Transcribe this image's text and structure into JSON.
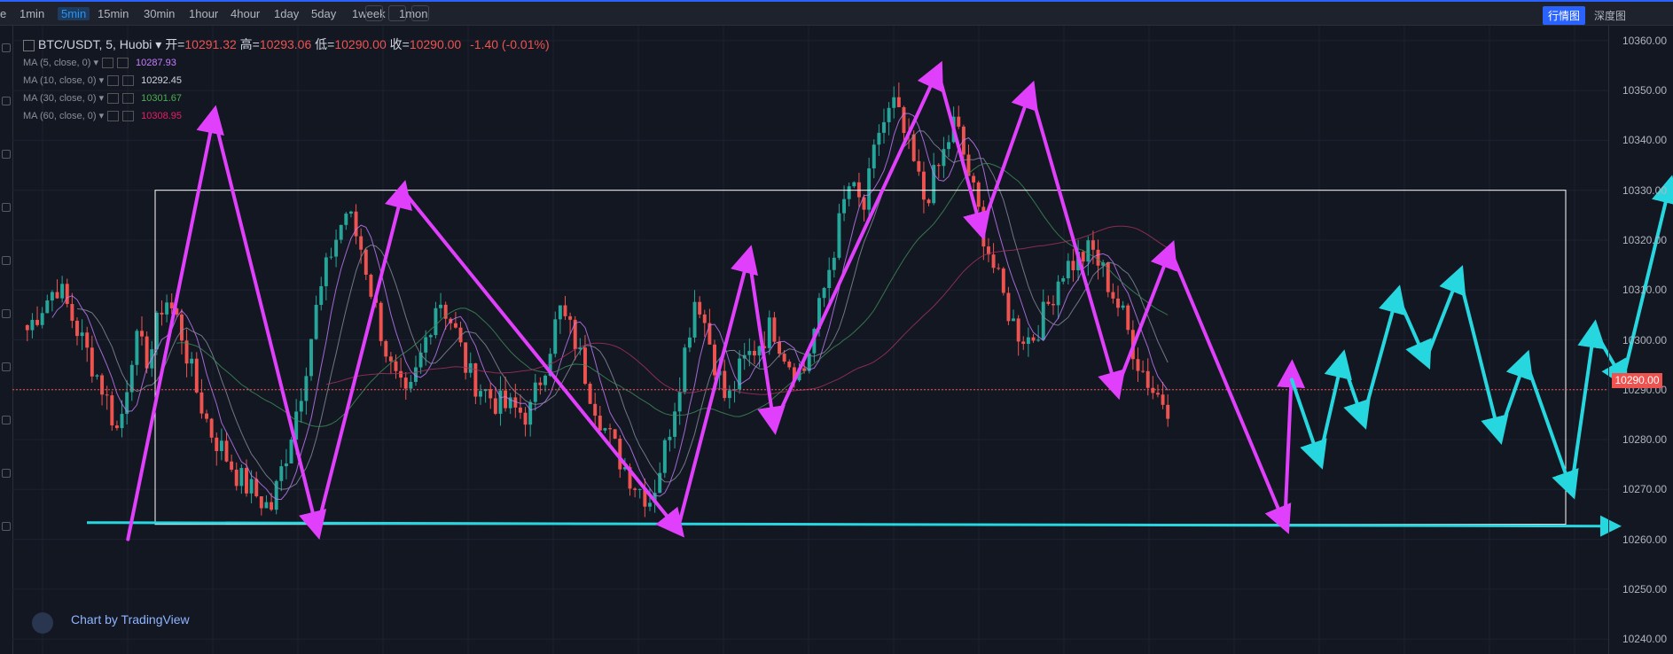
{
  "toolbar": {
    "cut_left": "e",
    "timeframes": [
      "1min",
      "5min",
      "15min",
      "30min",
      "1hour",
      "4hour",
      "1day",
      "5day",
      "1week",
      "1mon"
    ],
    "active_timeframe": "5min",
    "right_tabs": [
      "行情图",
      "深度图"
    ],
    "active_tab": "行情图"
  },
  "legend": {
    "symbol": "BTC/USDT, 5, Huobi",
    "open_label": "开=",
    "open": "10291.32",
    "high_label": "高=",
    "high": "10293.06",
    "low_label": "低=",
    "low": "10290.00",
    "close_label": "收=",
    "close": "10290.00",
    "change": "-1.40 (-0.01%)",
    "ma": [
      {
        "label": "MA (5, close, 0)",
        "value": "10287.93",
        "color": "#c77dff"
      },
      {
        "label": "MA (10, close, 0)",
        "value": "10292.45",
        "color": "#d1d4dc"
      },
      {
        "label": "MA (30, close, 0)",
        "value": "10301.67",
        "color": "#4caf50"
      },
      {
        "label": "MA (60, close, 0)",
        "value": "10308.95",
        "color": "#e91e63"
      }
    ]
  },
  "price_axis": {
    "ticks": [
      "10360.00",
      "10350.00",
      "10340.00",
      "10330.00",
      "10320.00",
      "10310.00",
      "10300.00",
      "10290.00",
      "10280.00",
      "10270.00",
      "10260.00",
      "10250.00",
      "10240.00"
    ],
    "last_price": "10290.00"
  },
  "watermark": "Chart by TradingView",
  "colors": {
    "up": "#26a69a",
    "down": "#ef5350",
    "magenta": "#e040fb",
    "cyan": "#26d7e0",
    "box": "#ffffff"
  },
  "chart_data": {
    "type": "candlestick",
    "symbol": "BTC/USDT",
    "timeframe": "5min",
    "y_range": [
      10237,
      10363
    ],
    "close_path": [
      10302,
      10307,
      10311,
      10304,
      10297,
      10290,
      10281,
      10300,
      10296,
      10309,
      10303,
      10291,
      10282,
      10277,
      10272,
      10269,
      10266,
      10277,
      10290,
      10306,
      10318,
      10326,
      10318,
      10305,
      10293,
      10287,
      10298,
      10309,
      10303,
      10293,
      10290,
      10287,
      10286,
      10285,
      10295,
      10306,
      10300,
      10290,
      10282,
      10276,
      10271,
      10268,
      10279,
      10294,
      10310,
      10298,
      10287,
      10295,
      10299,
      10303,
      10296,
      10293,
      10305,
      10318,
      10331,
      10326,
      10342,
      10347,
      10338,
      10328,
      10335,
      10344,
      10332,
      10320,
      10310,
      10302,
      10300,
      10306,
      10314,
      10316,
      10318,
      10312,
      10305,
      10296,
      10290,
      10287
    ],
    "magenta_path": [
      [
        0.09,
        10260
      ],
      [
        0.165,
        10345
      ],
      [
        0.255,
        10262
      ],
      [
        0.33,
        10330
      ],
      [
        0.57,
        10262
      ],
      [
        0.632,
        10317
      ],
      [
        0.654,
        10283
      ],
      [
        0.797,
        10354
      ],
      [
        0.835,
        10322
      ],
      [
        0.878,
        10350
      ],
      [
        0.953,
        10290
      ],
      [
        1.0,
        10318
      ],
      [
        1.1,
        10263
      ],
      [
        1.106,
        10294
      ]
    ],
    "cyan_path": [
      [
        1.106,
        10292
      ],
      [
        1.13,
        10276
      ],
      [
        1.15,
        10296
      ],
      [
        1.168,
        10284
      ],
      [
        1.198,
        10309
      ],
      [
        1.223,
        10296
      ],
      [
        1.252,
        10313
      ],
      [
        1.287,
        10281
      ],
      [
        1.31,
        10296
      ],
      [
        1.35,
        10270
      ],
      [
        1.37,
        10302
      ],
      [
        1.395,
        10292
      ],
      [
        1.436,
        10331
      ]
    ],
    "support_line": 10263,
    "range_box": {
      "top": 10330,
      "bottom": 10263
    }
  }
}
